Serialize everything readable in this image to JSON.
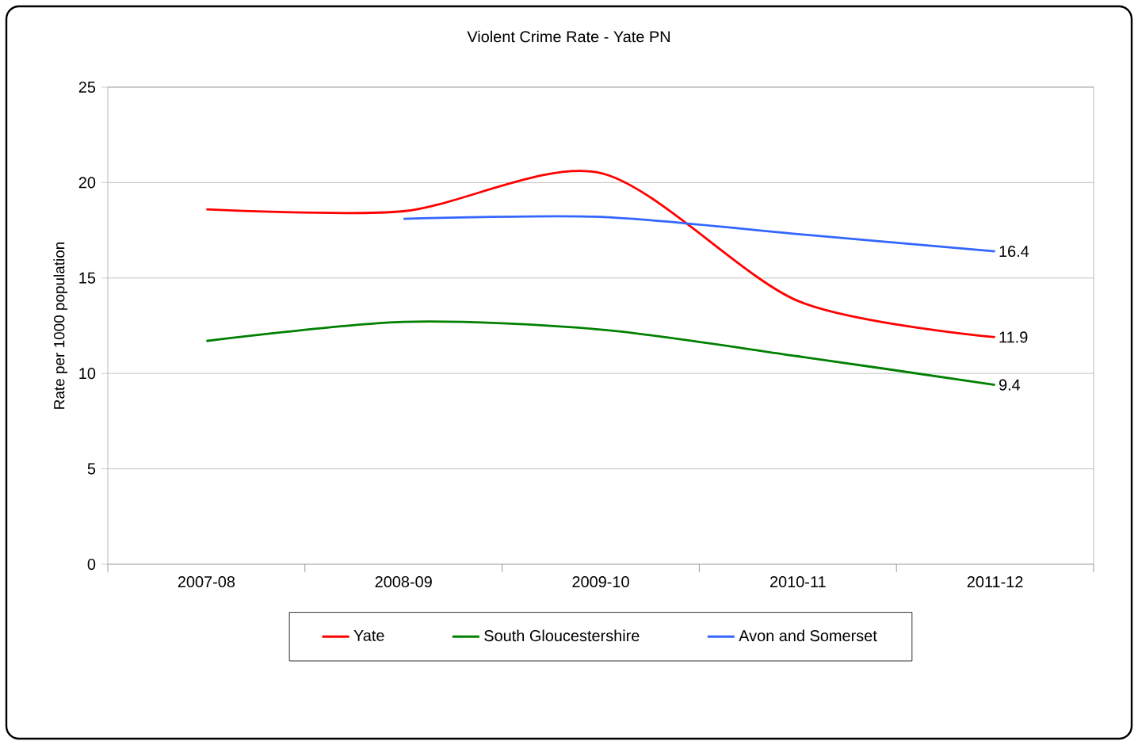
{
  "chart_data": {
    "type": "line",
    "title": "Violent  Crime Rate - Yate PN",
    "ylabel": "Rate per 1000 population",
    "categories": [
      "2007-08",
      "2008-09",
      "2009-10",
      "2010-11",
      "2011-12"
    ],
    "series": [
      {
        "name": "Yate",
        "color": "#ff0000",
        "values": [
          18.6,
          18.5,
          20.5,
          13.8,
          11.9
        ],
        "value_labels": [
          null,
          null,
          null,
          null,
          "11.9"
        ]
      },
      {
        "name": "South Gloucestershire",
        "color": "#008000",
        "values": [
          11.7,
          12.7,
          12.3,
          10.9,
          9.4
        ],
        "value_labels": [
          null,
          null,
          null,
          null,
          "9.4"
        ]
      },
      {
        "name": "Avon and Somerset",
        "color": "#3366ff",
        "values": [
          null,
          18.1,
          18.2,
          17.3,
          16.4
        ],
        "value_labels": [
          null,
          null,
          null,
          null,
          "16.4"
        ]
      }
    ],
    "ylim": [
      0,
      25
    ],
    "yticks": [
      0,
      5,
      10,
      15,
      20,
      25
    ],
    "grid": "y",
    "legend": "bottom",
    "marker": "none",
    "line_style": "solid"
  }
}
